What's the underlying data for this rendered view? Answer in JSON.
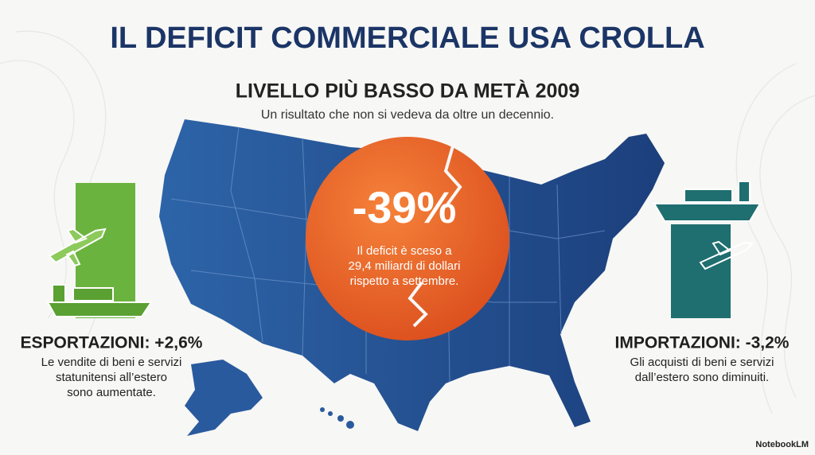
{
  "header": {
    "title": "IL DEFICIT COMMERCIALE USA CROLLA",
    "headline": "LIVELLO PIÙ BASSO DA METÀ 2009",
    "subheadline": "Un risultato che non si vedeva da oltre un decennio."
  },
  "stat": {
    "value": "-39%",
    "lines": [
      "Il deficit è sceso a",
      "29,4 miliardi di dollari",
      "rispetto a settembre."
    ]
  },
  "exports": {
    "label": "ESPORTAZIONI: +2,6%",
    "lines": [
      "Le vendite di beni e servizi",
      "statunitensi all’estero",
      "sono aumentate."
    ]
  },
  "imports": {
    "label": "IMPORTAZIONI: -3,2%",
    "lines": [
      "Gli acquisti di beni e servizi",
      "dall’estero sono diminuiti."
    ]
  },
  "watermark": "NotebookLM"
}
